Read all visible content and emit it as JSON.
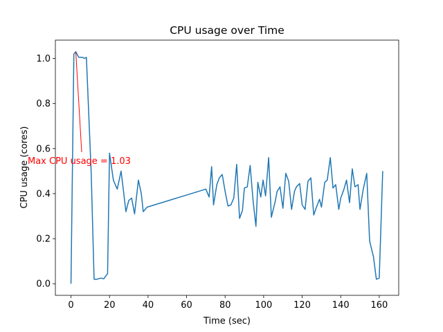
{
  "chart_data": {
    "type": "line",
    "title": "CPU usage over Time",
    "xlabel": "Time (sec)",
    "ylabel": "CPU usage (cores)",
    "x": [
      0,
      1.5,
      2.5,
      4,
      6,
      7,
      8,
      10.5,
      12,
      13.5,
      15.5,
      17,
      19,
      20,
      22,
      24,
      26,
      27,
      28.5,
      30,
      31.5,
      33,
      35,
      36.5,
      37.5,
      39.5,
      70,
      71.7,
      73,
      74,
      75.7,
      77,
      78.5,
      80,
      81.5,
      83,
      84.5,
      86,
      87.5,
      89,
      90,
      91.5,
      93,
      94.5,
      96,
      97,
      98.5,
      99.7,
      101,
      102.6,
      104,
      106,
      107,
      108.5,
      110,
      111.5,
      113,
      114.5,
      116,
      117,
      118.7,
      120,
      121.5,
      123,
      124.5,
      126,
      127.4,
      129,
      130,
      131.7,
      133,
      134.6,
      136,
      137.4,
      139,
      140,
      141.7,
      143,
      144.6,
      146,
      147.4,
      149,
      150,
      151.7,
      153.5,
      155,
      157,
      158.5,
      160,
      161.8
    ],
    "series": [
      {
        "name": "CPU usage",
        "color": "#1f77b4",
        "values": [
          0.0,
          1.02,
          1.03,
          1.005,
          1.005,
          1.0,
          1.005,
          0.49,
          0.02,
          0.02,
          0.025,
          0.022,
          0.045,
          0.58,
          0.46,
          0.42,
          0.5,
          0.43,
          0.32,
          0.37,
          0.38,
          0.31,
          0.46,
          0.4,
          0.32,
          0.34,
          0.42,
          0.385,
          0.52,
          0.35,
          0.44,
          0.47,
          0.485,
          0.41,
          0.345,
          0.35,
          0.38,
          0.53,
          0.29,
          0.325,
          0.425,
          0.43,
          0.525,
          0.37,
          0.255,
          0.45,
          0.385,
          0.46,
          0.39,
          0.56,
          0.295,
          0.365,
          0.41,
          0.43,
          0.335,
          0.49,
          0.455,
          0.33,
          0.41,
          0.43,
          0.445,
          0.35,
          0.33,
          0.455,
          0.47,
          0.305,
          0.34,
          0.375,
          0.34,
          0.45,
          0.46,
          0.56,
          0.425,
          0.44,
          0.33,
          0.38,
          0.42,
          0.46,
          0.36,
          0.51,
          0.43,
          0.44,
          0.33,
          0.42,
          0.49,
          0.19,
          0.12,
          0.02,
          0.025,
          0.5
        ]
      }
    ],
    "xlim": [
      -8.1,
      170.1
    ],
    "ylim": [
      -0.0515,
      1.0815
    ],
    "xticks": [
      0,
      20,
      40,
      60,
      80,
      100,
      120,
      140,
      160
    ],
    "yticks": [
      {
        "value": 0,
        "label": "0.0"
      },
      {
        "value": 0.2,
        "label": "0.2"
      },
      {
        "value": 0.4,
        "label": "0.4"
      },
      {
        "value": 0.6,
        "label": "0.6"
      },
      {
        "value": 0.8,
        "label": "0.8"
      },
      {
        "value": 1,
        "label": "1.0"
      }
    ],
    "annotation": {
      "text": "Max CPU usage = 1.03",
      "color": "red"
    }
  }
}
